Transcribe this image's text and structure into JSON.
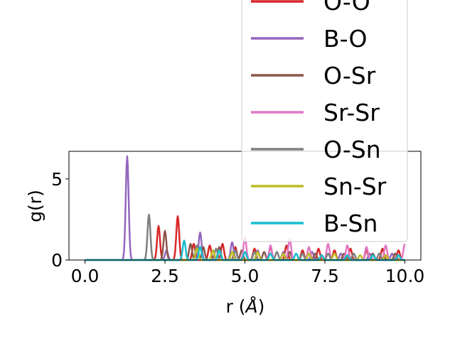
{
  "chart_data": {
    "type": "line",
    "title": "",
    "xlabel": "r (Å)",
    "xlabel_prefix": "r (",
    "xlabel_unit": "Å",
    "xlabel_suffix": ")",
    "ylabel": "g(r)",
    "xlim": [
      -0.5,
      10.5
    ],
    "ylim": [
      0,
      6.7
    ],
    "x_ticks": [
      "0.0",
      "2.5",
      "5.0",
      "7.5",
      "10.0"
    ],
    "x_tick_values": [
      0,
      2.5,
      5,
      7.5,
      10
    ],
    "y_ticks": [
      "0",
      "5"
    ],
    "y_tick_values": [
      0,
      5
    ],
    "grid": false,
    "legend_placement": "upper-right, extending above the axes",
    "series": [
      {
        "name": "O-O",
        "color": "#d62728",
        "peaks": [
          [
            2.3,
            2.1
          ],
          [
            2.9,
            2.7
          ],
          [
            3.4,
            1.0
          ],
          [
            3.9,
            0.9
          ],
          [
            4.3,
            1.0
          ],
          [
            4.7,
            0.8
          ],
          [
            5.3,
            0.7
          ],
          [
            5.8,
            0.8
          ],
          [
            6.3,
            0.9
          ],
          [
            6.8,
            0.6
          ],
          [
            7.3,
            0.7
          ],
          [
            7.8,
            0.6
          ],
          [
            8.3,
            0.7
          ],
          [
            8.8,
            0.6
          ],
          [
            9.3,
            0.7
          ],
          [
            9.8,
            0.6
          ]
        ]
      },
      {
        "name": "B-O",
        "color": "#9467bd",
        "peaks": [
          [
            1.32,
            6.4
          ],
          [
            2.55,
            0.6
          ],
          [
            3.6,
            1.7
          ],
          [
            4.6,
            1.1
          ],
          [
            5.4,
            0.6
          ],
          [
            6.2,
            0.5
          ],
          [
            7.1,
            0.5
          ],
          [
            8.0,
            0.4
          ],
          [
            8.9,
            0.4
          ],
          [
            9.6,
            0.4
          ]
        ]
      },
      {
        "name": "O-Sr",
        "color": "#8c564b",
        "peaks": [
          [
            2.5,
            1.8
          ],
          [
            3.3,
            1.0
          ],
          [
            3.7,
            0.8
          ],
          [
            4.2,
            0.8
          ],
          [
            4.9,
            0.6
          ],
          [
            5.6,
            0.5
          ],
          [
            6.4,
            0.5
          ],
          [
            7.2,
            0.4
          ],
          [
            8.1,
            0.4
          ],
          [
            9.0,
            0.4
          ],
          [
            9.7,
            0.4
          ]
        ]
      },
      {
        "name": "Sr-Sr",
        "color": "#e377c2",
        "peaks": [
          [
            5.0,
            1.4
          ],
          [
            5.8,
            0.9
          ],
          [
            6.4,
            1.3
          ],
          [
            7.0,
            0.8
          ],
          [
            7.6,
            1.0
          ],
          [
            8.2,
            0.9
          ],
          [
            8.8,
            0.8
          ],
          [
            9.4,
            0.9
          ],
          [
            10.0,
            1.0
          ]
        ]
      },
      {
        "name": "O-Sn",
        "color": "#7f7f7f",
        "peaks": [
          [
            2.0,
            2.8
          ],
          [
            3.5,
            0.9
          ],
          [
            4.1,
            0.7
          ],
          [
            4.7,
            0.6
          ],
          [
            5.3,
            0.5
          ],
          [
            6.0,
            0.5
          ],
          [
            6.8,
            0.4
          ],
          [
            7.6,
            0.4
          ],
          [
            8.4,
            0.4
          ],
          [
            9.2,
            0.4
          ]
        ]
      },
      {
        "name": "Sn-Sr",
        "color": "#bcbd22",
        "peaks": [
          [
            3.5,
            0.7
          ],
          [
            4.0,
            0.6
          ],
          [
            4.6,
            0.5
          ],
          [
            5.4,
            0.5
          ],
          [
            6.2,
            0.4
          ],
          [
            7.0,
            0.4
          ],
          [
            7.8,
            0.4
          ],
          [
            8.6,
            0.3
          ],
          [
            9.4,
            0.3
          ]
        ]
      },
      {
        "name": "B-Sn",
        "color": "#17becf",
        "peaks": [
          [
            3.1,
            1.2
          ],
          [
            3.6,
            0.8
          ],
          [
            4.2,
            0.6
          ],
          [
            5.0,
            0.5
          ],
          [
            5.8,
            0.4
          ],
          [
            6.6,
            0.4
          ],
          [
            7.4,
            0.3
          ],
          [
            8.2,
            0.3
          ],
          [
            9.0,
            0.3
          ],
          [
            9.8,
            0.3
          ]
        ]
      }
    ]
  }
}
